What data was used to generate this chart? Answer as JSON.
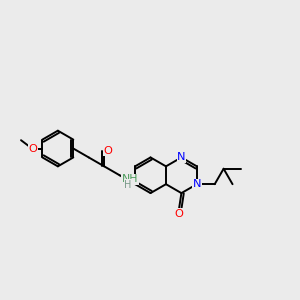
{
  "background_color": "#ebebeb",
  "bond_width": 1.4,
  "figsize": [
    3.0,
    3.0
  ],
  "dpi": 100,
  "xlim": [
    0,
    10
  ],
  "ylim": [
    1.5,
    8.5
  ]
}
